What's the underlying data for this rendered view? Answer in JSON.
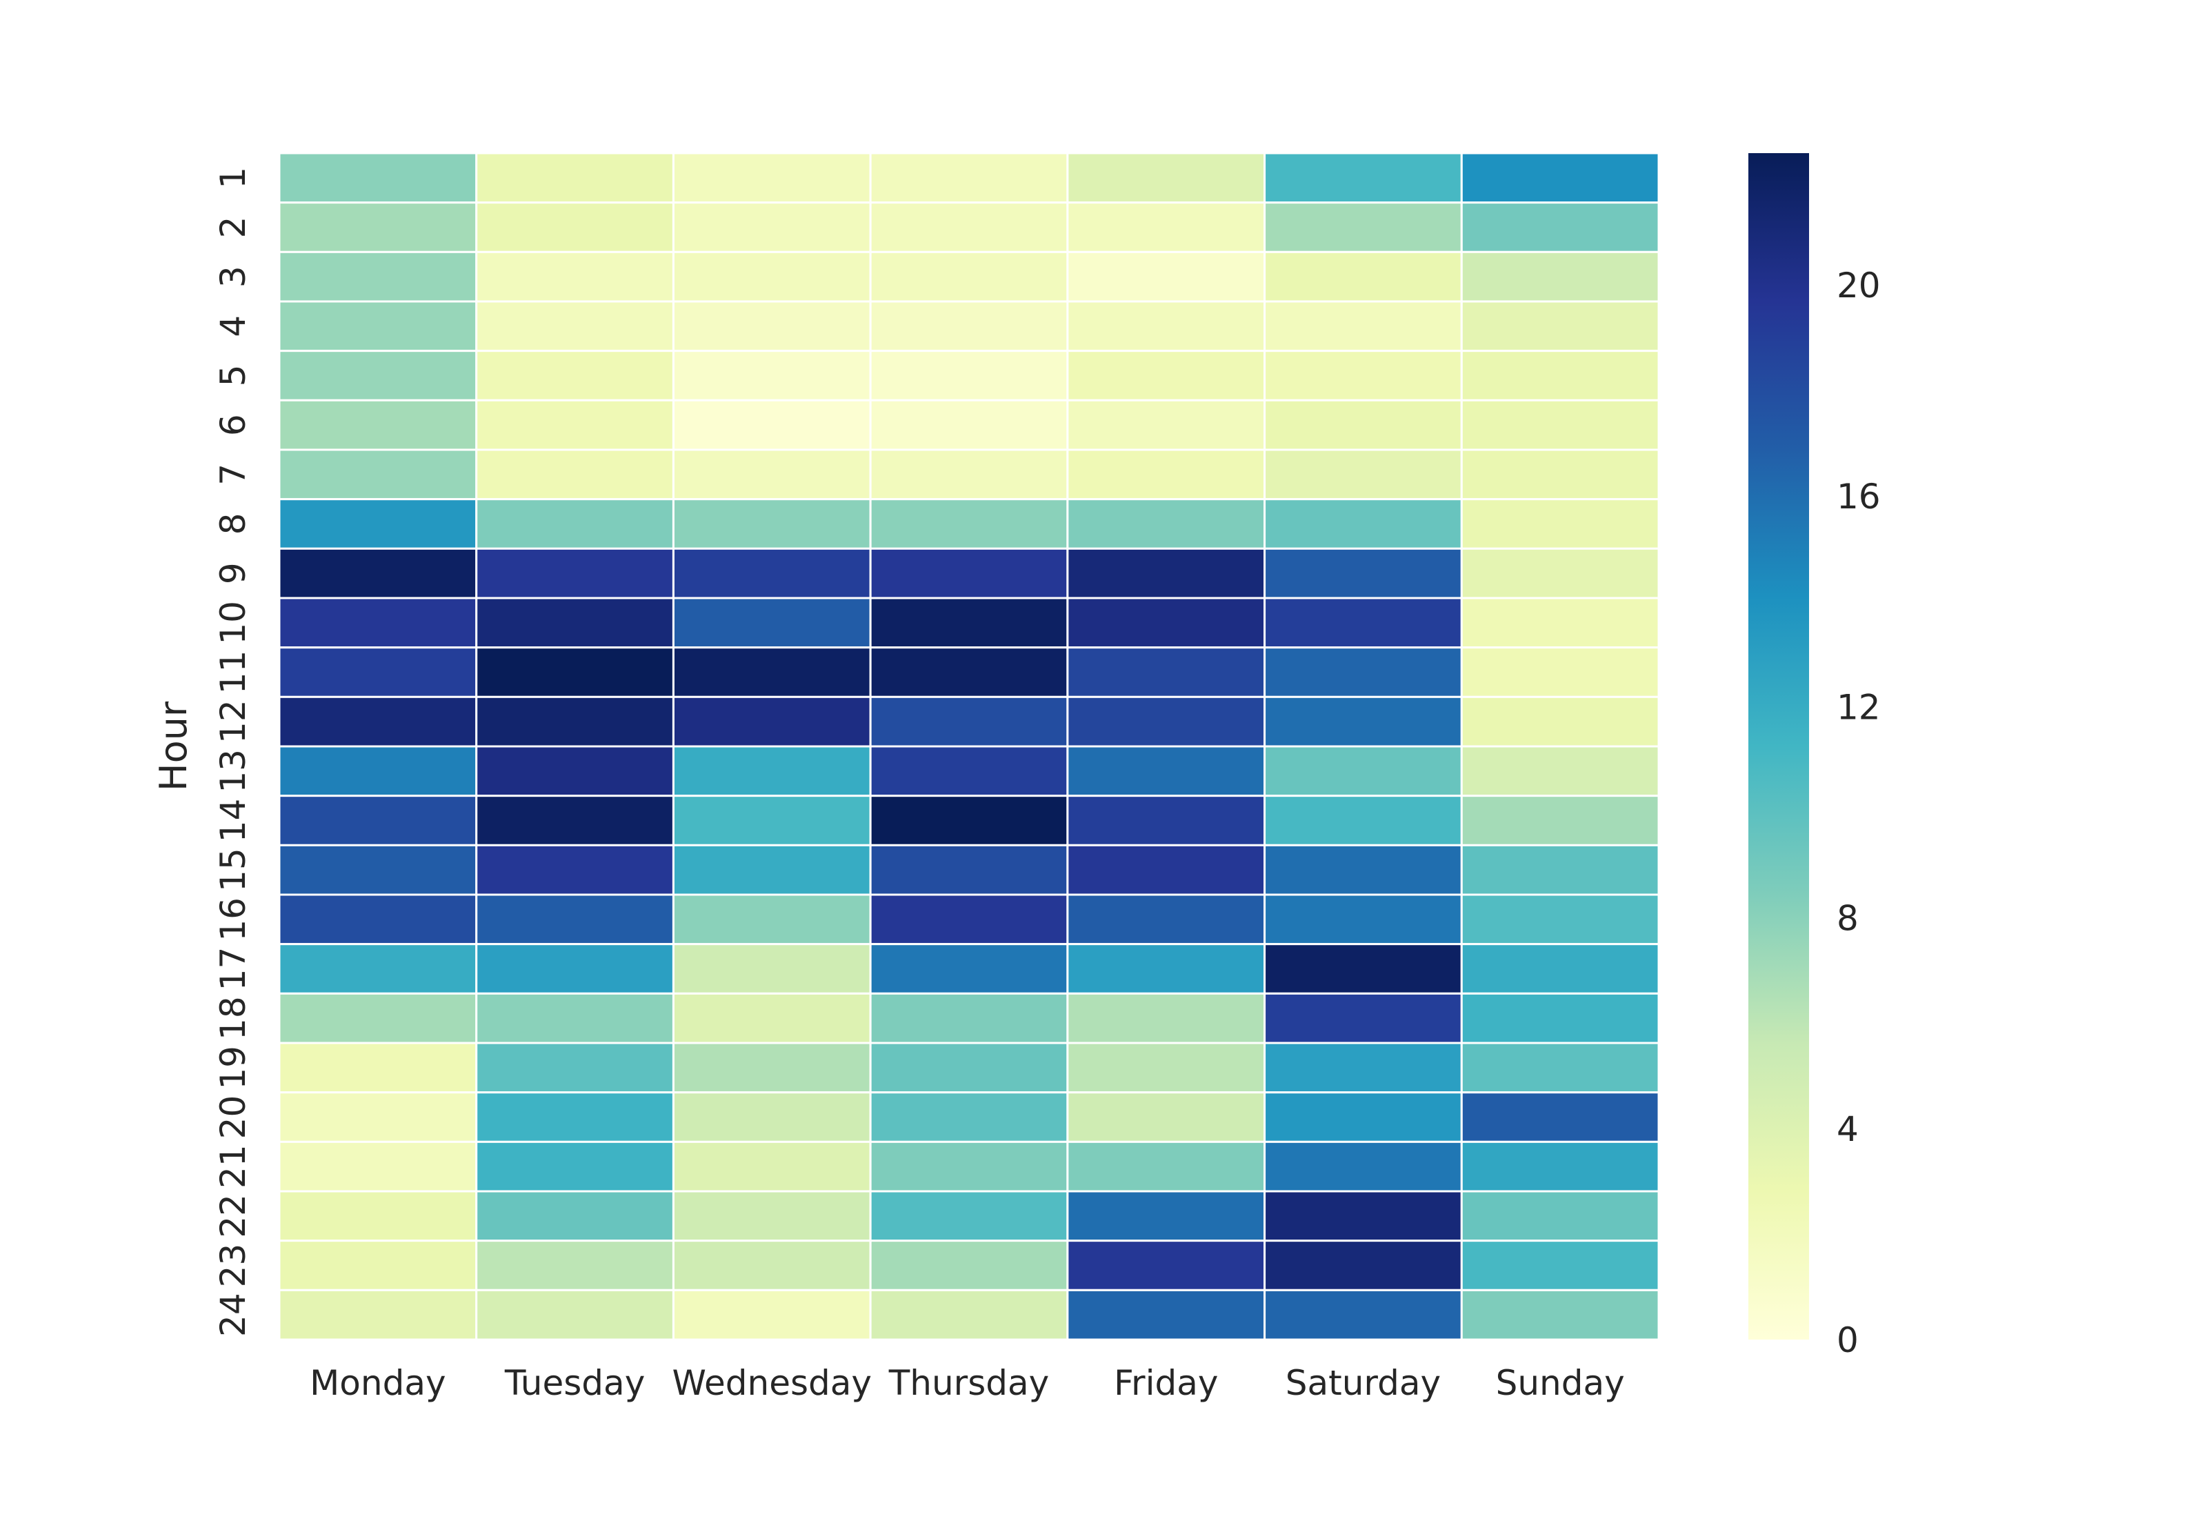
{
  "chart_data": {
    "type": "heatmap",
    "title": "",
    "xlabel": "",
    "ylabel": "Hour",
    "x_categories": [
      "Monday",
      "Tuesday",
      "Wednesday",
      "Thursday",
      "Friday",
      "Saturday",
      "Sunday"
    ],
    "y_categories": [
      "1",
      "2",
      "3",
      "4",
      "5",
      "6",
      "7",
      "8",
      "9",
      "10",
      "11",
      "12",
      "13",
      "14",
      "15",
      "16",
      "17",
      "18",
      "19",
      "20",
      "21",
      "22",
      "23",
      "24"
    ],
    "values": [
      [
        8,
        3,
        2,
        2,
        4,
        11,
        14
      ],
      [
        7,
        3,
        2,
        2,
        2,
        7,
        9
      ],
      [
        7.5,
        2,
        2,
        2,
        1,
        3,
        5
      ],
      [
        7.5,
        2,
        1.5,
        1.5,
        2,
        2,
        3.5
      ],
      [
        7.5,
        2.5,
        1,
        1,
        2.5,
        2.5,
        3
      ],
      [
        7,
        2.5,
        0.5,
        1,
        2,
        3,
        3
      ],
      [
        7.5,
        2.5,
        2,
        2,
        2.5,
        3.5,
        3
      ],
      [
        13.5,
        8.5,
        8,
        8,
        8.5,
        9.5,
        3
      ],
      [
        22,
        19.5,
        19,
        19.5,
        21,
        17,
        3.5
      ],
      [
        19.5,
        21,
        17,
        22,
        20.5,
        19,
        2.5
      ],
      [
        19,
        22.5,
        22,
        22,
        18.5,
        16.5,
        2.5
      ],
      [
        21,
        21.5,
        20.5,
        18,
        18.5,
        16,
        3
      ],
      [
        15,
        20.5,
        12,
        19,
        16,
        9.5,
        4.5
      ],
      [
        18,
        22,
        11,
        22.5,
        19,
        11,
        7
      ],
      [
        17,
        19.5,
        12,
        18,
        19.5,
        16,
        10
      ],
      [
        18,
        17,
        8,
        19.5,
        17,
        15.5,
        10.5
      ],
      [
        12,
        13,
        5,
        15.5,
        13,
        22,
        12
      ],
      [
        7,
        8,
        4,
        8.5,
        6.5,
        19,
        11.5
      ],
      [
        2.5,
        10,
        6.5,
        9.5,
        6,
        13,
        10
      ],
      [
        2,
        11.5,
        5,
        10,
        5,
        13.5,
        17
      ],
      [
        2,
        11.5,
        4,
        8.5,
        8.5,
        15.5,
        12.5
      ],
      [
        3,
        9.5,
        5,
        10.5,
        16,
        21,
        9.5
      ],
      [
        3,
        6,
        5,
        7,
        19.5,
        21,
        11
      ],
      [
        3.5,
        4.5,
        2,
        4.5,
        16.5,
        16.5,
        8.5
      ]
    ],
    "vmin": 0,
    "vmax": 22.5,
    "colormap": "YlGnBu",
    "colormap_stops": [
      "#ffffd9",
      "#edf8b1",
      "#c7e9b4",
      "#7fcdbb",
      "#41b6c4",
      "#1d91c0",
      "#225ea8",
      "#253494",
      "#081d58"
    ],
    "colorbar": {
      "ticks": [
        0,
        4,
        8,
        12,
        16,
        20
      ],
      "tick_labels": [
        "0",
        "4",
        "8",
        "12",
        "16",
        "20"
      ],
      "location": "right"
    },
    "cell_border_color": "#ffffff",
    "grid": false
  }
}
